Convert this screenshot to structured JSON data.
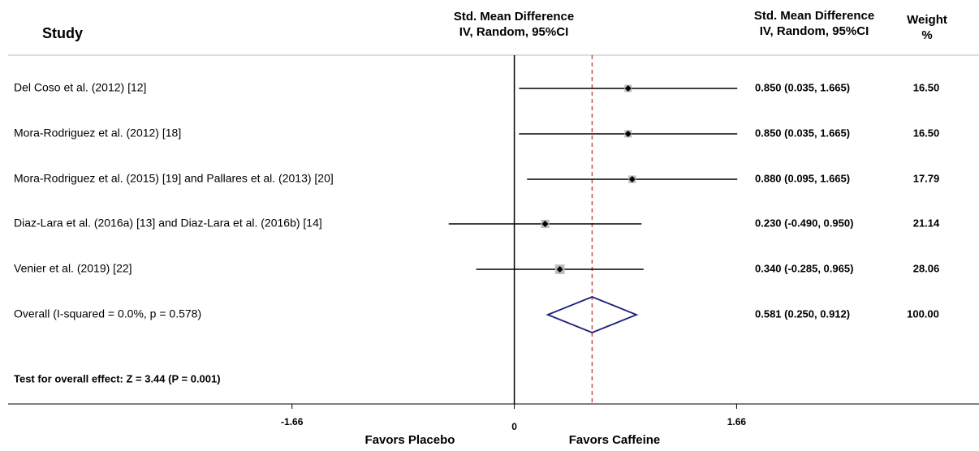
{
  "chart_data": {
    "type": "forest",
    "header": {
      "study": "Study",
      "plot": [
        "Std. Mean Difference",
        "IV, Random, 95%CI"
      ],
      "ci": [
        "Std. Mean Difference",
        "IV, Random, 95%CI"
      ],
      "weight": [
        "Weight",
        "%"
      ]
    },
    "studies": [
      {
        "label": "Del Coso et al. (2012)  [12]",
        "estimate": 0.85,
        "lower": 0.035,
        "upper": 1.665,
        "ci_label": "0.850 (0.035, 1.665)",
        "weight": 16.5,
        "weight_label": "16.50"
      },
      {
        "label": "Mora-Rodriguez et al. (2012)  [18]",
        "estimate": 0.85,
        "lower": 0.035,
        "upper": 1.665,
        "ci_label": "0.850 (0.035, 1.665)",
        "weight": 16.5,
        "weight_label": "16.50"
      },
      {
        "label": "Mora-Rodriguez et al. (2015) [19]  and Pallares et al. (2013) [20]",
        "estimate": 0.88,
        "lower": 0.095,
        "upper": 1.665,
        "ci_label": "0.880 (0.095, 1.665)",
        "weight": 17.79,
        "weight_label": "17.79"
      },
      {
        "label": "Diaz-Lara et al. (2016a) [13]  and Diaz-Lara et al. (2016b)  [14]",
        "estimate": 0.23,
        "lower": -0.49,
        "upper": 0.95,
        "ci_label": "0.230 (-0.490, 0.950)",
        "weight": 21.14,
        "weight_label": "21.14"
      },
      {
        "label": "Venier et al. (2019) [22]",
        "estimate": 0.34,
        "lower": -0.285,
        "upper": 0.965,
        "ci_label": "0.340 (-0.285, 0.965)",
        "weight": 28.06,
        "weight_label": "28.06"
      }
    ],
    "overall": {
      "label": "Overall (I-squared = 0.0%, p = 0.578)",
      "estimate": 0.581,
      "lower": 0.25,
      "upper": 0.912,
      "ci_label": "0.581 (0.250, 0.912)",
      "weight": 100,
      "weight_label": "100.00"
    },
    "test": "Test for overall effect: Z = 3.44 (P = 0.001)",
    "xlim": [
      -3.78,
      3.47
    ],
    "xticks": [
      -1.66,
      0,
      1.66
    ],
    "xlabels": [
      "Favors Placebo",
      "Favors Caffeine"
    ],
    "effect_line_color": "#c0504d",
    "diamond_color": "#1f1f7a"
  }
}
